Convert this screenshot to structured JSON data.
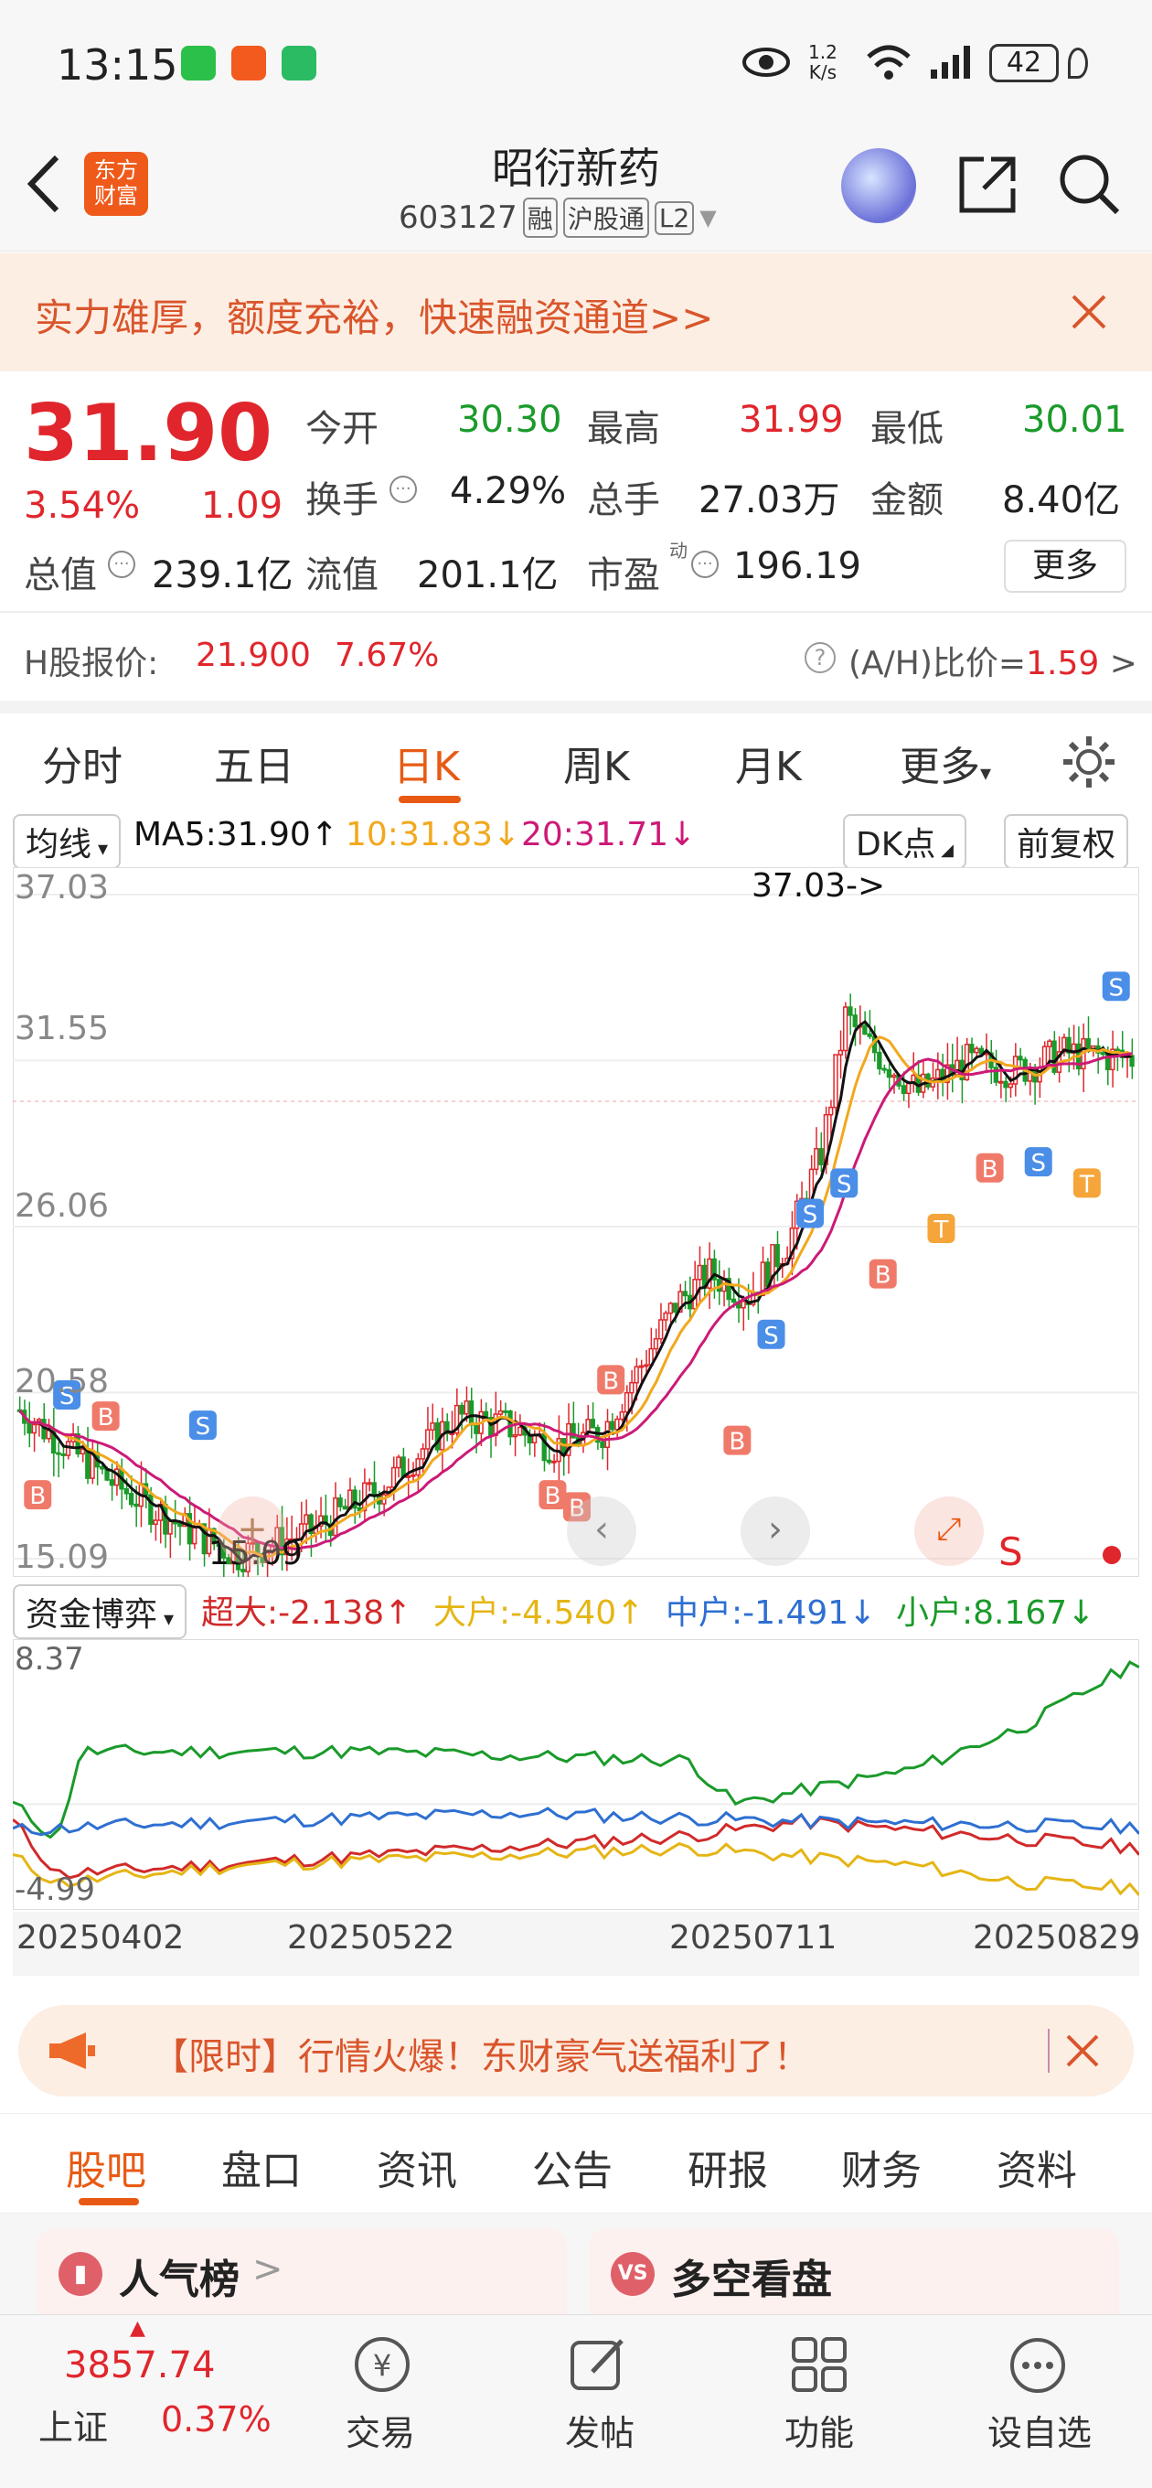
{
  "status": {
    "time": "13:15",
    "net_speed_top": "1.2",
    "net_speed_unit": "K/s",
    "battery": "42"
  },
  "header": {
    "app_logo": "东方\n财富",
    "title": "昭衍新药",
    "code": "603127",
    "tag_rong": "融",
    "tag_hgt": "沪股通",
    "tag_l2": "L2"
  },
  "promo": {
    "text": "实力雄厚，额度充裕，快速融资通道>>"
  },
  "quote": {
    "price": "31.90",
    "change_pct": "3.54%",
    "change": "1.09",
    "open_label": "今开",
    "open": "30.30",
    "high_label": "最高",
    "high": "31.99",
    "low_label": "最低",
    "low": "30.01",
    "turnover_label": "换手",
    "turnover": "4.29%",
    "volume_label": "总手",
    "volume": "27.03万",
    "amount_label": "金额",
    "amount": "8.40亿",
    "mktcap_label": "总值",
    "mktcap": "239.1亿",
    "float_label": "流值",
    "float": "201.1亿",
    "pe_label": "市盈",
    "pe_sup": "动",
    "pe": "196.19",
    "more_btn": "更多",
    "h_label": "H股报价:",
    "h_price": "21.900",
    "h_pct": "7.67%",
    "ah_label": "(A/H)比价=",
    "ah_value": "1.59",
    "ah_arrow": ">"
  },
  "tabs": [
    "分时",
    "五日",
    "日K",
    "周K",
    "月K",
    "更多"
  ],
  "kline": {
    "ma_select": "均线",
    "ma5": "MA5:31.90↑",
    "ma10": "10:31.83↓",
    "ma20": "20:31.71↓",
    "dk_btn": "DK点",
    "adj_btn": "前复权",
    "y_labels": [
      "37.03",
      "31.55",
      "26.06",
      "20.58",
      "15.09"
    ],
    "max_label": "37.03->",
    "min_label": "15.09",
    "colors": {
      "up": "#e0262c",
      "down": "#1a9a2a",
      "ma5": "#111111",
      "ma10": "#f2a81d",
      "ma20": "#cc1a77",
      "buy": "#f07a6a",
      "sell": "#4a8ee8",
      "t": "#f5a53a"
    }
  },
  "fund": {
    "select": "资金博弈",
    "super": "超大:-2.138↑",
    "big": "大户:-4.540↑",
    "mid": "中户:-1.491↓",
    "small": "小户:8.167↓",
    "y_top": "8.37",
    "y_bottom": "-4.99",
    "dates": [
      "20250402",
      "20250522",
      "20250711",
      "20250829"
    ]
  },
  "ad": {
    "text": "【限时】行情火爆！东财豪气送福利了！"
  },
  "lower_tabs": [
    "股吧",
    "盘口",
    "资讯",
    "公告",
    "研报",
    "财务",
    "资料"
  ],
  "cards": {
    "left": "人气榜",
    "left_arrow": ">",
    "right": "多空看盘",
    "right_badge": "VS"
  },
  "bottom": {
    "index_value": "3857.74",
    "index_name": "上证",
    "index_pct": "0.37%",
    "trade": "交易",
    "post": "发帖",
    "function": "功能",
    "watchlist": "设自选"
  }
}
